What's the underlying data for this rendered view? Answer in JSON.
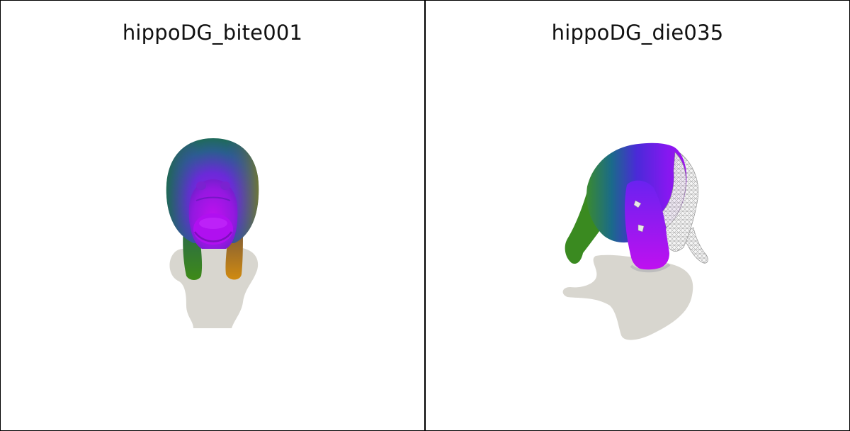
{
  "panels": [
    {
      "title": "hippoDG_bite001"
    },
    {
      "title": "hippoDG_die035"
    }
  ],
  "colors": {
    "background": "#ffffff",
    "border": "#000000",
    "shadow": "#d8d6cf",
    "mesh_magenta": "#b000e0",
    "mesh_purple": "#7a22f0",
    "mesh_teal": "#1a7a7a",
    "mesh_green": "#3e8a18",
    "mesh_orange": "#d08a10",
    "wireframe": "#e8e8e8"
  }
}
